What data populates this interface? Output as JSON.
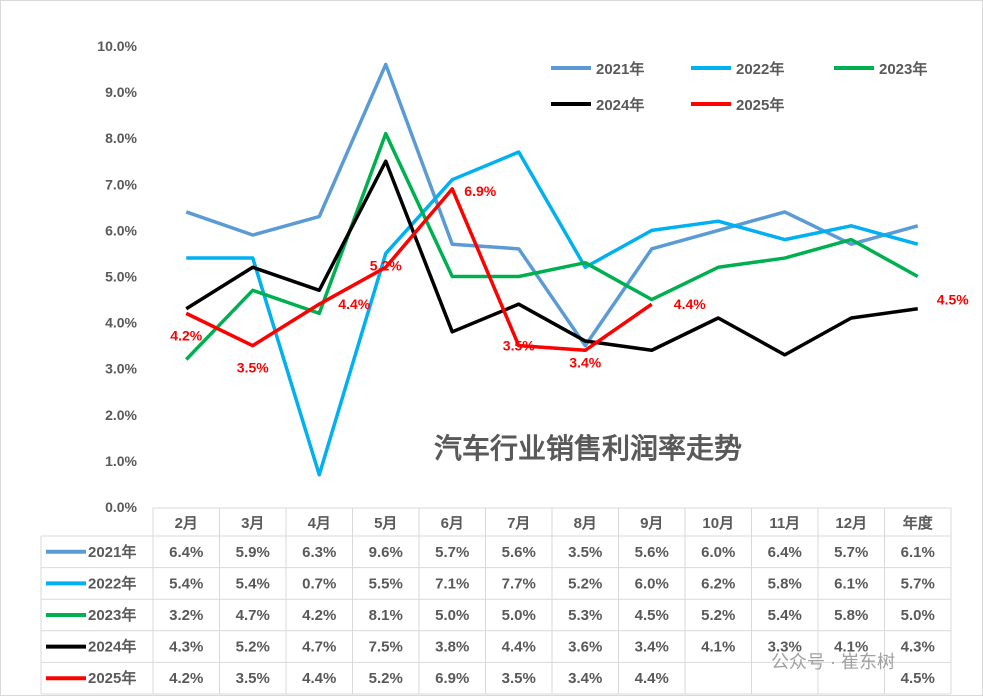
{
  "chart_data": {
    "type": "line",
    "title": "汽车行业销售利润率走势",
    "categories": [
      "2月",
      "3月",
      "4月",
      "5月",
      "6月",
      "7月",
      "8月",
      "9月",
      "10月",
      "11月",
      "12月",
      "年度"
    ],
    "ylim": [
      0,
      10
    ],
    "yticks": [
      "0.0%",
      "1.0%",
      "2.0%",
      "3.0%",
      "4.0%",
      "5.0%",
      "6.0%",
      "7.0%",
      "8.0%",
      "9.0%",
      "10.0%"
    ],
    "grid": false,
    "legend_position": "top-right",
    "series": [
      {
        "name": "2021年",
        "color": "#5b9bd5",
        "values": [
          6.4,
          5.9,
          6.3,
          9.6,
          5.7,
          5.6,
          3.5,
          5.6,
          6.0,
          6.4,
          5.7,
          6.1
        ],
        "labels": [
          "6.4%",
          "5.9%",
          "6.3%",
          "9.6%",
          "5.7%",
          "5.6%",
          "3.5%",
          "5.6%",
          "6.0%",
          "6.4%",
          "5.7%",
          "6.1%"
        ]
      },
      {
        "name": "2022年",
        "color": "#00b0f0",
        "values": [
          5.4,
          5.4,
          0.7,
          5.5,
          7.1,
          7.7,
          5.2,
          6.0,
          6.2,
          5.8,
          6.1,
          5.7
        ],
        "labels": [
          "5.4%",
          "5.4%",
          "0.7%",
          "5.5%",
          "7.1%",
          "7.7%",
          "5.2%",
          "6.0%",
          "6.2%",
          "5.8%",
          "6.1%",
          "5.7%"
        ]
      },
      {
        "name": "2023年",
        "color": "#00b050",
        "values": [
          3.2,
          4.7,
          4.2,
          8.1,
          5.0,
          5.0,
          5.3,
          4.5,
          5.2,
          5.4,
          5.8,
          5.0
        ],
        "labels": [
          "3.2%",
          "4.7%",
          "4.2%",
          "8.1%",
          "5.0%",
          "5.0%",
          "5.3%",
          "4.5%",
          "5.2%",
          "5.4%",
          "5.8%",
          "5.0%"
        ]
      },
      {
        "name": "2024年",
        "color": "#000000",
        "values": [
          4.3,
          5.2,
          4.7,
          7.5,
          3.8,
          4.4,
          3.6,
          3.4,
          4.1,
          3.3,
          4.1,
          4.3
        ],
        "labels": [
          "4.3%",
          "5.2%",
          "4.7%",
          "7.5%",
          "3.8%",
          "4.4%",
          "3.6%",
          "3.4%",
          "4.1%",
          "3.3%",
          "4.1%",
          "4.3%"
        ]
      },
      {
        "name": "2025年",
        "color": "#ff0000",
        "values": [
          4.2,
          3.5,
          4.4,
          5.2,
          6.9,
          3.5,
          3.4,
          4.4,
          null,
          null,
          null,
          4.5
        ],
        "labels": [
          "4.2%",
          "3.5%",
          "4.4%",
          "5.2%",
          "6.9%",
          "3.5%",
          "3.4%",
          "4.4%",
          "",
          "",
          "",
          "4.5%"
        ]
      }
    ]
  },
  "watermark": "公众号 · 崔东树"
}
